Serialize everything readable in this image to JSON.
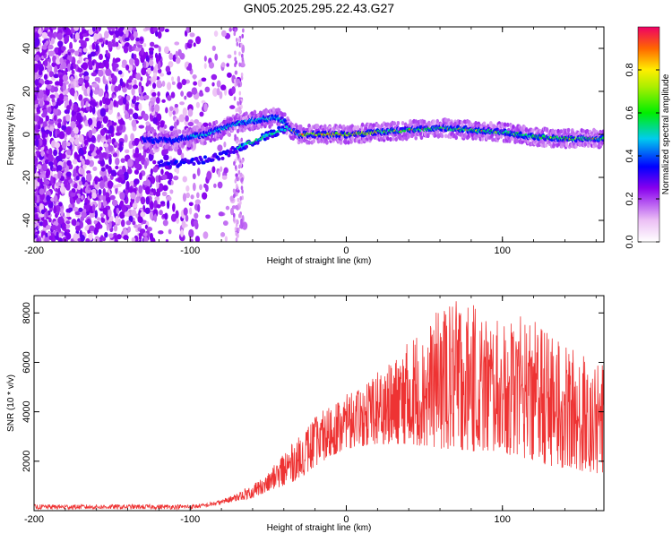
{
  "title": "GN05.2025.295.22.43.G27",
  "chart_data": [
    {
      "type": "heatmap",
      "xlabel": "Height of straight line (km)",
      "ylabel": "Frequency (Hz)",
      "xlim": [
        -200,
        165
      ],
      "ylim": [
        -50,
        50
      ],
      "xticks": [
        -200,
        -100,
        0,
        100
      ],
      "yticks": [
        -40,
        -20,
        0,
        20,
        40
      ],
      "colorbar": {
        "label": "Normalized spectral amplitude",
        "range": [
          0,
          1
        ],
        "ticks": [
          "0.0",
          "0.2",
          "0.4",
          "0.6",
          "0.8"
        ]
      },
      "ridge": {
        "x": [
          -200,
          -110,
          -100,
          -90,
          -70,
          -55,
          -45,
          -40,
          -35,
          -30,
          -20,
          0,
          20,
          40,
          60,
          80,
          100,
          120,
          140,
          165
        ],
        "y": [
          0,
          -3,
          -1,
          0,
          5,
          7,
          8,
          6,
          2,
          0,
          0,
          0,
          1,
          2,
          3,
          2,
          1,
          -1,
          -2,
          -2
        ]
      },
      "lower_branch": {
        "x": [
          -120,
          -100,
          -80,
          -65,
          -55,
          -45,
          -38
        ],
        "y": [
          -14,
          -13,
          -10,
          -5,
          -2,
          1,
          3
        ]
      }
    },
    {
      "type": "line",
      "xlabel": "Height of straight line (km)",
      "ylabel": "SNR (10 * v/v)",
      "xlim": [
        -200,
        165
      ],
      "ylim": [
        0,
        8700
      ],
      "xticks": [
        -200,
        -100,
        0,
        100
      ],
      "yticks": [
        2000,
        4000,
        6000,
        8000
      ],
      "color": "#ee3333",
      "envelope": {
        "x": [
          -200,
          -100,
          -90,
          -80,
          -70,
          -60,
          -50,
          -40,
          -30,
          -20,
          -10,
          0,
          10,
          20,
          30,
          40,
          50,
          60,
          70,
          80,
          90,
          100,
          110,
          120,
          130,
          140,
          150,
          160,
          165
        ],
        "base": [
          50,
          60,
          120,
          250,
          400,
          500,
          800,
          1000,
          1300,
          1800,
          2200,
          2500,
          2600,
          2700,
          2700,
          2700,
          2600,
          2500,
          2500,
          2400,
          2400,
          2300,
          2200,
          2000,
          1800,
          1700,
          1600,
          1500,
          1500
        ],
        "peak": [
          250,
          250,
          300,
          450,
          700,
          1100,
          1500,
          2400,
          3000,
          3800,
          4300,
          4700,
          5000,
          5700,
          6000,
          6900,
          7500,
          8200,
          8600,
          8400,
          7900,
          7600,
          7900,
          7800,
          7200,
          6800,
          6400,
          6000,
          5900
        ]
      }
    }
  ]
}
